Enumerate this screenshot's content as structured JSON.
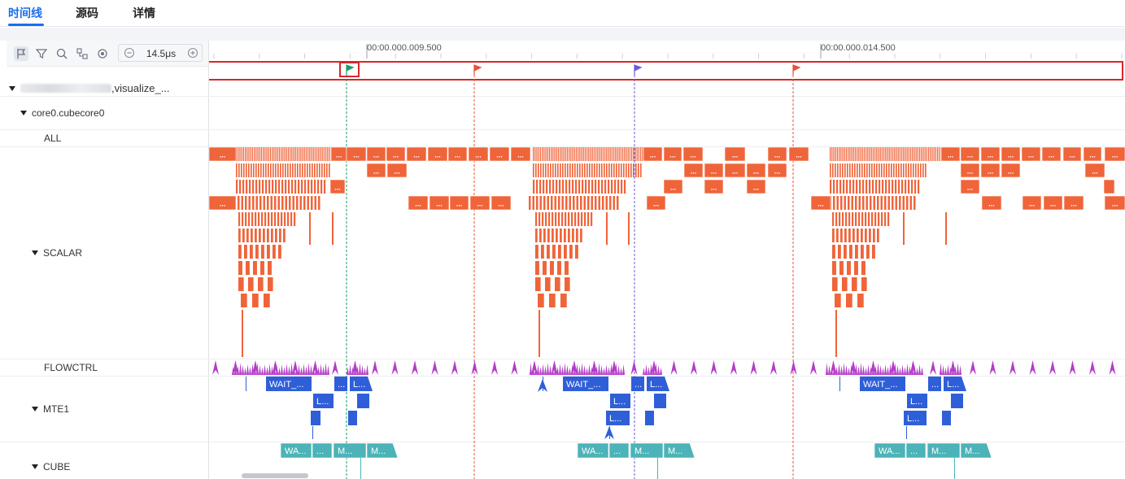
{
  "tabs": [
    {
      "label": "时间线",
      "active": true
    },
    {
      "label": "源码",
      "active": false
    },
    {
      "label": "详情",
      "active": false
    }
  ],
  "toolbar": {
    "zoom_value": "14.5μs",
    "icons": [
      "flag-icon",
      "filter-icon",
      "search-icon",
      "link-icon",
      "target-icon",
      "zoom-out-icon",
      "zoom-in-icon"
    ]
  },
  "tree": {
    "root_label": ",visualize_...",
    "core_label": "core0.cubecore0",
    "rows": {
      "all": "ALL",
      "scalar": "SCALAR",
      "flowctrl": "FLOWCTRL",
      "mte1": "MTE1",
      "cube": "CUBE"
    }
  },
  "ruler": {
    "ticks": [
      {
        "label": "00:00.000.009.500"
      },
      {
        "label": "00:00.000.014.500"
      }
    ]
  },
  "flags": {
    "selected_color": "#1a9e6a",
    "red_color": "#e8503a",
    "purple_color": "#6a5ad8"
  },
  "slices": {
    "mte1_wait": "WAIT_...",
    "mte1_l": "L...",
    "ellipsis": "...",
    "cube_wait": "WA...",
    "cube_m": "M..."
  },
  "colors": {
    "accent": "#1a6eea",
    "scalar": "#f0643a",
    "flowctrl": "#b43cc8",
    "mte1": "#2f5fd8",
    "cube": "#4cb3b8",
    "highlight_box": "#d9262b"
  }
}
